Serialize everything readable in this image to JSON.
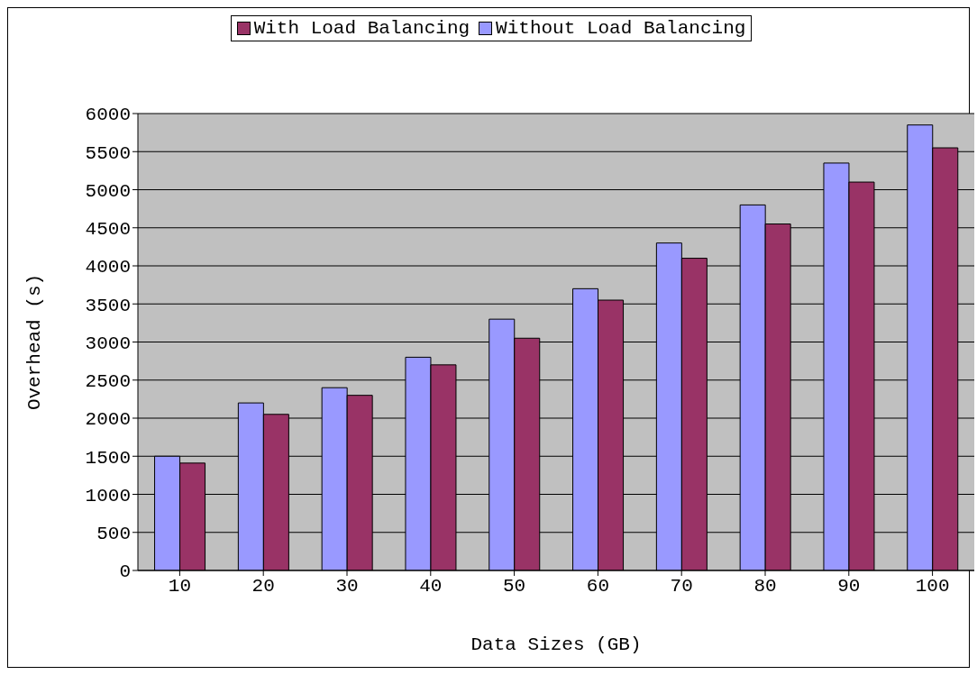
{
  "chart_data": {
    "type": "bar",
    "xlabel": "Data Sizes (GB)",
    "ylabel": "Overhead (s)",
    "categories": [
      "10",
      "20",
      "30",
      "40",
      "50",
      "60",
      "70",
      "80",
      "90",
      "100"
    ],
    "series": [
      {
        "name": "Without Load Balancing",
        "color": "#9999ff",
        "values": [
          1500,
          2200,
          2400,
          2800,
          3300,
          3700,
          4300,
          4800,
          5350,
          5850
        ]
      },
      {
        "name": "With Load Balancing",
        "color": "#993366",
        "values": [
          1410,
          2050,
          2300,
          2700,
          3050,
          3550,
          4100,
          4550,
          5100,
          5550
        ]
      }
    ],
    "ylim": [
      0,
      6000
    ],
    "yticks": [
      0,
      500,
      1000,
      1500,
      2000,
      2500,
      3000,
      3500,
      4000,
      4500,
      5000,
      5500,
      6000
    ],
    "grid": "y",
    "legend": "top"
  }
}
